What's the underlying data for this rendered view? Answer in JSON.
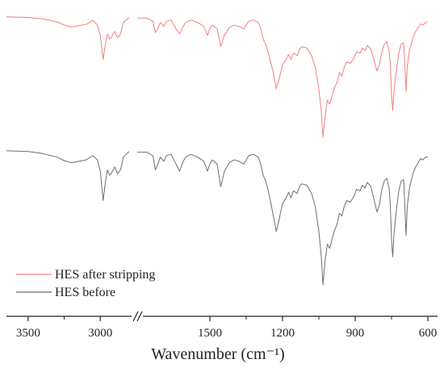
{
  "chart_data": {
    "type": "line",
    "title": "",
    "xlabel": "Wavenumber (cm⁻¹)",
    "ylabel": "",
    "x_axis": "reversed, broken between 2800 and 1800",
    "x_segments": [
      [
        3650,
        2800
      ],
      [
        1800,
        600
      ]
    ],
    "x_ticks": [
      "3500",
      "3000",
      "1500",
      "1200",
      "900",
      "600"
    ],
    "x_tick_values": [
      3500,
      3000,
      1500,
      1200,
      900,
      600
    ],
    "y_ticks": "none",
    "grid": false,
    "legend_position": "bottom-left",
    "colors": {
      "after": "#f08080",
      "before": "#6e6e6e"
    },
    "series": [
      {
        "name": "HES after stripping",
        "color": "#f08080",
        "points": [
          [
            3650,
            0.995
          ],
          [
            3500,
            0.99
          ],
          [
            3400,
            0.98
          ],
          [
            3300,
            0.955
          ],
          [
            3250,
            0.93
          ],
          [
            3200,
            0.915
          ],
          [
            3100,
            0.935
          ],
          [
            3050,
            0.965
          ],
          [
            3020,
            0.93
          ],
          [
            3000,
            0.85
          ],
          [
            2980,
            0.66
          ],
          [
            2965,
            0.78
          ],
          [
            2950,
            0.86
          ],
          [
            2935,
            0.82
          ],
          [
            2920,
            0.84
          ],
          [
            2900,
            0.88
          ],
          [
            2880,
            0.83
          ],
          [
            2860,
            0.86
          ],
          [
            2840,
            0.95
          ],
          [
            2800,
            0.99
          ],
          [
            1800,
            0.985
          ],
          [
            1760,
            0.985
          ],
          [
            1735,
            0.96
          ],
          [
            1725,
            0.87
          ],
          [
            1715,
            0.9
          ],
          [
            1705,
            0.95
          ],
          [
            1690,
            0.92
          ],
          [
            1680,
            0.96
          ],
          [
            1660,
            0.97
          ],
          [
            1640,
            0.9
          ],
          [
            1625,
            0.86
          ],
          [
            1610,
            0.92
          ],
          [
            1600,
            0.95
          ],
          [
            1580,
            0.97
          ],
          [
            1550,
            0.95
          ],
          [
            1525,
            0.92
          ],
          [
            1510,
            0.85
          ],
          [
            1500,
            0.9
          ],
          [
            1490,
            0.93
          ],
          [
            1470,
            0.9
          ],
          [
            1455,
            0.76
          ],
          [
            1440,
            0.85
          ],
          [
            1420,
            0.91
          ],
          [
            1400,
            0.93
          ],
          [
            1380,
            0.92
          ],
          [
            1360,
            0.9
          ],
          [
            1340,
            0.96
          ],
          [
            1320,
            0.97
          ],
          [
            1300,
            0.95
          ],
          [
            1290,
            0.9
          ],
          [
            1280,
            0.82
          ],
          [
            1270,
            0.78
          ],
          [
            1260,
            0.72
          ],
          [
            1240,
            0.57
          ],
          [
            1226,
            0.43
          ],
          [
            1215,
            0.5
          ],
          [
            1200,
            0.62
          ],
          [
            1185,
            0.66
          ],
          [
            1175,
            0.7
          ],
          [
            1165,
            0.66
          ],
          [
            1155,
            0.71
          ],
          [
            1140,
            0.69
          ],
          [
            1130,
            0.74
          ],
          [
            1120,
            0.76
          ],
          [
            1100,
            0.75
          ],
          [
            1080,
            0.69
          ],
          [
            1065,
            0.6
          ],
          [
            1050,
            0.43
          ],
          [
            1040,
            0.25
          ],
          [
            1033,
            0.05
          ],
          [
            1025,
            0.2
          ],
          [
            1015,
            0.34
          ],
          [
            1005,
            0.31
          ],
          [
            995,
            0.38
          ],
          [
            985,
            0.44
          ],
          [
            975,
            0.48
          ],
          [
            965,
            0.56
          ],
          [
            955,
            0.53
          ],
          [
            945,
            0.6
          ],
          [
            935,
            0.64
          ],
          [
            920,
            0.63
          ],
          [
            905,
            0.67
          ],
          [
            895,
            0.72
          ],
          [
            880,
            0.71
          ],
          [
            870,
            0.75
          ],
          [
            860,
            0.73
          ],
          [
            850,
            0.77
          ],
          [
            835,
            0.74
          ],
          [
            820,
            0.64
          ],
          [
            810,
            0.57
          ],
          [
            800,
            0.62
          ],
          [
            790,
            0.72
          ],
          [
            780,
            0.78
          ],
          [
            770,
            0.8
          ],
          [
            760,
            0.73
          ],
          [
            755,
            0.62
          ],
          [
            750,
            0.38
          ],
          [
            745,
            0.26
          ],
          [
            740,
            0.41
          ],
          [
            730,
            0.57
          ],
          [
            720,
            0.71
          ],
          [
            710,
            0.78
          ],
          [
            700,
            0.79
          ],
          [
            695,
            0.62
          ],
          [
            690,
            0.41
          ],
          [
            685,
            0.61
          ],
          [
            675,
            0.74
          ],
          [
            660,
            0.84
          ],
          [
            650,
            0.88
          ],
          [
            640,
            0.91
          ],
          [
            630,
            0.94
          ],
          [
            620,
            0.93
          ],
          [
            610,
            0.95
          ],
          [
            600,
            0.95
          ]
        ]
      },
      {
        "name": "HES before",
        "color": "#6e6e6e",
        "points": [
          [
            3650,
            0.995
          ],
          [
            3500,
            0.99
          ],
          [
            3400,
            0.975
          ],
          [
            3300,
            0.95
          ],
          [
            3250,
            0.925
          ],
          [
            3200,
            0.91
          ],
          [
            3100,
            0.93
          ],
          [
            3050,
            0.96
          ],
          [
            3020,
            0.93
          ],
          [
            3000,
            0.85
          ],
          [
            2980,
            0.64
          ],
          [
            2965,
            0.77
          ],
          [
            2950,
            0.86
          ],
          [
            2935,
            0.82
          ],
          [
            2920,
            0.84
          ],
          [
            2900,
            0.88
          ],
          [
            2880,
            0.83
          ],
          [
            2860,
            0.86
          ],
          [
            2840,
            0.95
          ],
          [
            2800,
            0.99
          ],
          [
            1800,
            0.985
          ],
          [
            1760,
            0.985
          ],
          [
            1735,
            0.96
          ],
          [
            1725,
            0.86
          ],
          [
            1715,
            0.9
          ],
          [
            1705,
            0.95
          ],
          [
            1690,
            0.92
          ],
          [
            1680,
            0.96
          ],
          [
            1660,
            0.97
          ],
          [
            1640,
            0.9
          ],
          [
            1625,
            0.85
          ],
          [
            1610,
            0.92
          ],
          [
            1600,
            0.95
          ],
          [
            1580,
            0.97
          ],
          [
            1550,
            0.95
          ],
          [
            1525,
            0.92
          ],
          [
            1510,
            0.85
          ],
          [
            1500,
            0.9
          ],
          [
            1490,
            0.93
          ],
          [
            1470,
            0.9
          ],
          [
            1455,
            0.74
          ],
          [
            1440,
            0.85
          ],
          [
            1420,
            0.91
          ],
          [
            1400,
            0.93
          ],
          [
            1380,
            0.92
          ],
          [
            1360,
            0.9
          ],
          [
            1340,
            0.96
          ],
          [
            1320,
            0.97
          ],
          [
            1300,
            0.95
          ],
          [
            1290,
            0.9
          ],
          [
            1280,
            0.82
          ],
          [
            1270,
            0.78
          ],
          [
            1260,
            0.72
          ],
          [
            1240,
            0.55
          ],
          [
            1226,
            0.42
          ],
          [
            1215,
            0.5
          ],
          [
            1200,
            0.62
          ],
          [
            1185,
            0.66
          ],
          [
            1175,
            0.7
          ],
          [
            1165,
            0.66
          ],
          [
            1155,
            0.71
          ],
          [
            1140,
            0.69
          ],
          [
            1130,
            0.74
          ],
          [
            1120,
            0.76
          ],
          [
            1100,
            0.75
          ],
          [
            1080,
            0.69
          ],
          [
            1065,
            0.6
          ],
          [
            1050,
            0.42
          ],
          [
            1040,
            0.24
          ],
          [
            1033,
            0.04
          ],
          [
            1025,
            0.2
          ],
          [
            1015,
            0.33
          ],
          [
            1005,
            0.3
          ],
          [
            995,
            0.37
          ],
          [
            985,
            0.43
          ],
          [
            975,
            0.47
          ],
          [
            965,
            0.55
          ],
          [
            955,
            0.53
          ],
          [
            945,
            0.6
          ],
          [
            935,
            0.64
          ],
          [
            920,
            0.63
          ],
          [
            905,
            0.67
          ],
          [
            895,
            0.72
          ],
          [
            880,
            0.71
          ],
          [
            870,
            0.75
          ],
          [
            860,
            0.73
          ],
          [
            850,
            0.77
          ],
          [
            835,
            0.74
          ],
          [
            820,
            0.63
          ],
          [
            810,
            0.56
          ],
          [
            800,
            0.61
          ],
          [
            790,
            0.72
          ],
          [
            780,
            0.78
          ],
          [
            770,
            0.8
          ],
          [
            760,
            0.73
          ],
          [
            755,
            0.61
          ],
          [
            750,
            0.36
          ],
          [
            745,
            0.24
          ],
          [
            740,
            0.4
          ],
          [
            730,
            0.57
          ],
          [
            720,
            0.71
          ],
          [
            710,
            0.78
          ],
          [
            700,
            0.79
          ],
          [
            695,
            0.6
          ],
          [
            690,
            0.39
          ],
          [
            685,
            0.6
          ],
          [
            675,
            0.74
          ],
          [
            660,
            0.84
          ],
          [
            650,
            0.88
          ],
          [
            640,
            0.91
          ],
          [
            630,
            0.94
          ],
          [
            620,
            0.93
          ],
          [
            610,
            0.95
          ],
          [
            600,
            0.95
          ]
        ]
      }
    ]
  }
}
